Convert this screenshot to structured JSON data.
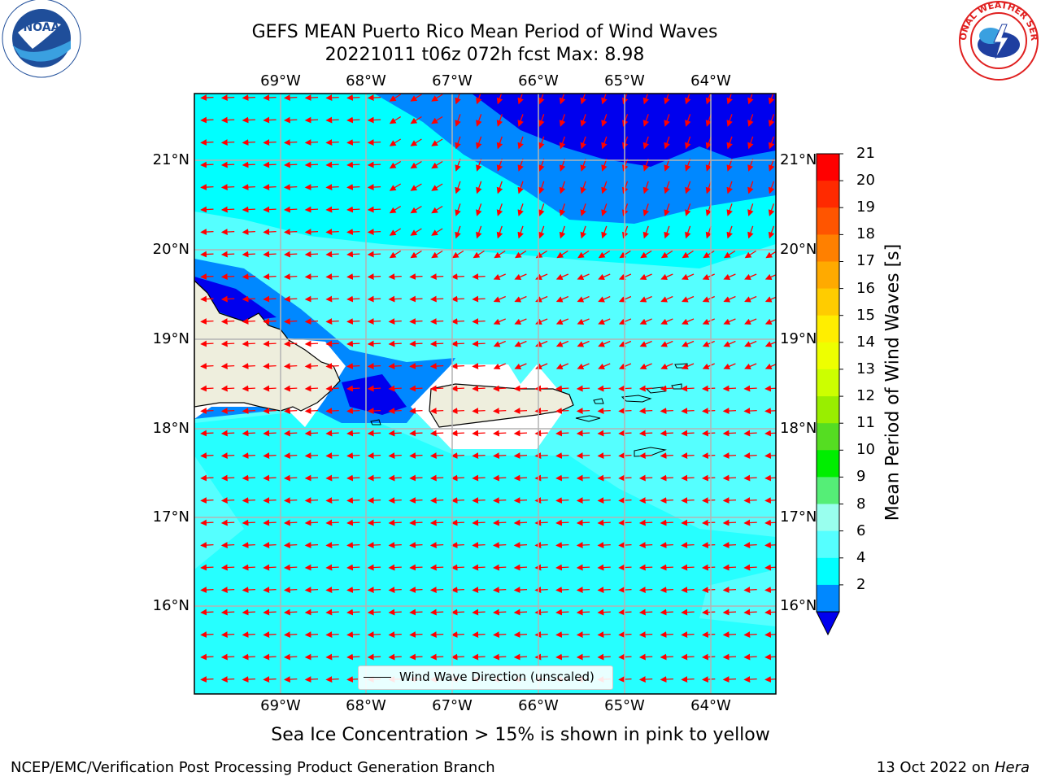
{
  "title_line1": "GEFS MEAN Puerto Rico Mean Period of Wind Waves",
  "title_line2": "20221011 t06z 072h fcst   Max: 8.98",
  "lon_labels": [
    "69°W",
    "68°W",
    "67°W",
    "66°W",
    "65°W",
    "64°W"
  ],
  "lat_labels": [
    "21°N",
    "20°N",
    "19°N",
    "18°N",
    "17°N",
    "16°N"
  ],
  "legend_label": "Wind Wave Direction (unscaled)",
  "ice_note": "Sea Ice Concentration > 15% is shown in pink to yellow",
  "footer_left": "NCEP/EMC/Verification Post Processing Product Generation Branch",
  "footer_date": "13 Oct 2022 on",
  "footer_machine": "Hera",
  "colorbar": {
    "title": "Mean Period of Wind Waves [s]",
    "ticks": [
      "21",
      "20",
      "19",
      "18",
      "17",
      "16",
      "15",
      "14",
      "13",
      "12",
      "11",
      "10",
      "9",
      "8",
      "6",
      "4",
      "2"
    ],
    "colors": [
      "#ff0000",
      "#ff2a00",
      "#ff5500",
      "#ff8000",
      "#ffaa00",
      "#ffcc00",
      "#ffee00",
      "#eeff00",
      "#ccff00",
      "#99ee00",
      "#55dd22",
      "#00ee00",
      "#55ee77",
      "#99ffee",
      "#55ffff",
      "#00ffff",
      "#0088ff"
    ],
    "under_color": "#0000ee"
  },
  "map_colors": {
    "c4_6": "#00ffff",
    "c6_8": "#55ffff",
    "c2_4": "#0088ff",
    "c_lt2": "#0000ee",
    "land": "#eeeedd",
    "arrow": "#ff0000"
  },
  "logos": {
    "left": "NOAA",
    "right": "NATIONAL WEATHER SERVICE"
  }
}
